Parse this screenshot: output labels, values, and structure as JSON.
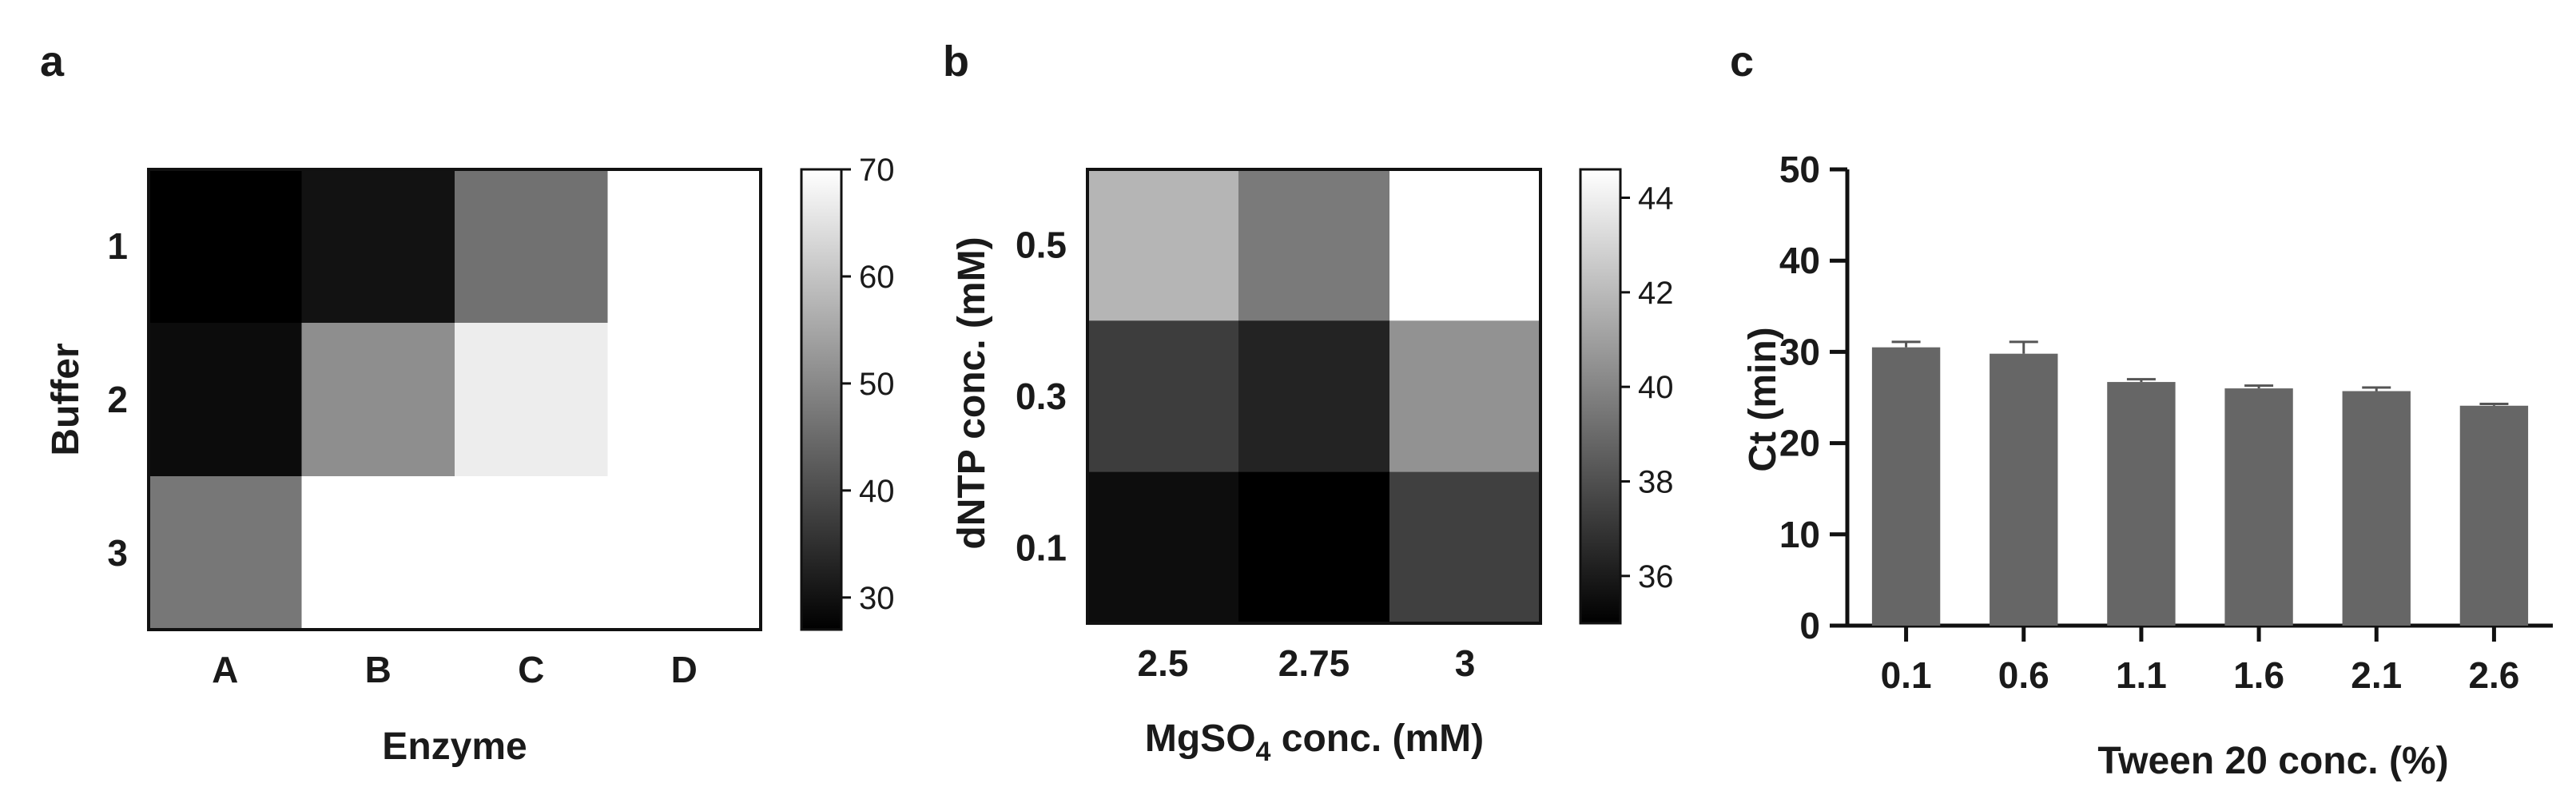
{
  "panels": [
    {
      "panel_label": "a",
      "type": "heatmap",
      "xlabel": "Enzyme",
      "ylabel": "Buffer",
      "x_categories": [
        "A",
        "B",
        "C",
        "D"
      ],
      "y_categories": [
        "1",
        "2",
        "3"
      ],
      "values": [
        [
          27,
          30,
          46,
          70
        ],
        [
          29,
          51,
          67,
          70
        ],
        [
          47,
          70,
          70,
          70
        ]
      ],
      "colorbar": {
        "min": 27,
        "max": 70,
        "ticks": [
          30,
          40,
          50,
          60,
          70
        ],
        "colormap": "black-to-white"
      }
    },
    {
      "panel_label": "b",
      "type": "heatmap",
      "xlabel_main": "MgSO",
      "xlabel_sub": "4",
      "xlabel_rest": " conc. (mM)",
      "ylabel": "dNTP conc. (mM)",
      "x_categories": [
        "2.5",
        "2.75",
        "3"
      ],
      "y_categories": [
        "0.5",
        "0.3",
        "0.1"
      ],
      "values": [
        [
          41.8,
          39.6,
          44.6
        ],
        [
          37.3,
          36.3,
          40.5
        ],
        [
          35.5,
          35.0,
          37.4
        ]
      ],
      "colorbar": {
        "min": 35,
        "max": 44.6,
        "ticks": [
          36,
          38,
          40,
          42,
          44
        ],
        "colormap": "black-to-white"
      }
    },
    {
      "panel_label": "c",
      "type": "bar",
      "xlabel": "Tween 20 conc. (%)",
      "ylabel": "Ct (min)",
      "categories": [
        "0.1",
        "0.6",
        "1.1",
        "1.6",
        "2.1",
        "2.6"
      ],
      "values": [
        30.5,
        29.8,
        26.7,
        26.0,
        25.7,
        24.1
      ],
      "errors": [
        0.6,
        1.3,
        0.3,
        0.3,
        0.4,
        0.2
      ],
      "ylim": [
        0,
        50
      ],
      "yticks": [
        "0",
        "10",
        "20",
        "30",
        "40",
        "50"
      ],
      "bar_color": "#666666"
    }
  ]
}
